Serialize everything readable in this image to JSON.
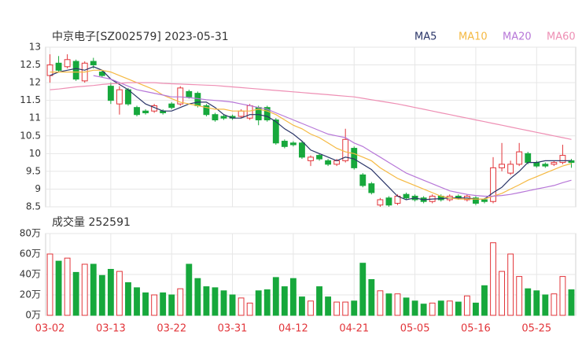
{
  "chart_data": [
    {
      "type": "candlestick",
      "title": "中京电子[SZ002579] 2023-05-31",
      "open": [
        12.2,
        12.55,
        12.45,
        12.6,
        12.05,
        12.6,
        12.3,
        11.9,
        11.4,
        11.8,
        11.3,
        11.2,
        11.2,
        11.2,
        11.4,
        11.4,
        11.75,
        11.7,
        11.35,
        11.1,
        11.05,
        11.05,
        11.05,
        11.0,
        11.3,
        11.3,
        10.95,
        10.35,
        10.3,
        10.3,
        9.8,
        9.95,
        9.8,
        9.7,
        9.8,
        10.15,
        9.4,
        9.15,
        8.55,
        8.75,
        8.6,
        8.85,
        8.8,
        8.75,
        8.65,
        8.8,
        8.7,
        8.8,
        8.7,
        8.75,
        8.7,
        8.65,
        9.6,
        9.45,
        9.7,
        10.0,
        9.75,
        9.7,
        9.7,
        9.75,
        9.8
      ],
      "high": [
        12.8,
        12.75,
        12.8,
        12.65,
        12.6,
        12.7,
        12.35,
        12.0,
        11.9,
        11.85,
        11.35,
        11.25,
        11.4,
        11.25,
        11.45,
        11.9,
        11.8,
        11.75,
        11.4,
        11.15,
        11.1,
        11.1,
        11.25,
        11.4,
        11.35,
        11.35,
        11.0,
        10.4,
        10.35,
        10.35,
        9.95,
        10.0,
        9.85,
        9.85,
        10.7,
        10.2,
        9.45,
        9.2,
        8.75,
        8.8,
        8.85,
        8.9,
        8.85,
        8.8,
        8.85,
        8.85,
        8.85,
        8.85,
        8.85,
        8.8,
        8.75,
        9.9,
        10.3,
        9.8,
        10.3,
        10.05,
        9.8,
        9.75,
        9.8,
        10.25,
        9.85
      ],
      "low": [
        12.0,
        12.3,
        12.4,
        12.05,
        12.0,
        12.4,
        12.15,
        11.4,
        11.1,
        11.35,
        11.05,
        11.1,
        11.15,
        11.1,
        11.25,
        11.35,
        11.55,
        11.3,
        11.05,
        10.9,
        10.95,
        10.95,
        11.0,
        10.95,
        10.8,
        10.9,
        10.25,
        10.15,
        10.2,
        9.85,
        9.65,
        9.8,
        9.65,
        9.65,
        9.75,
        9.55,
        9.05,
        8.85,
        8.5,
        8.5,
        8.55,
        8.7,
        8.65,
        8.6,
        8.6,
        8.65,
        8.65,
        8.7,
        8.65,
        8.55,
        8.6,
        8.6,
        9.5,
        9.4,
        9.65,
        9.7,
        9.6,
        9.6,
        9.65,
        9.7,
        9.6
      ],
      "close": [
        12.5,
        12.35,
        12.65,
        12.1,
        12.55,
        12.5,
        12.2,
        11.5,
        11.8,
        11.4,
        11.1,
        11.15,
        11.35,
        11.15,
        11.3,
        11.85,
        11.6,
        11.35,
        11.1,
        10.95,
        11.0,
        11.0,
        11.2,
        11.35,
        10.95,
        10.95,
        10.3,
        10.2,
        10.25,
        9.9,
        9.9,
        9.85,
        9.7,
        9.8,
        10.4,
        9.6,
        9.1,
        8.9,
        8.7,
        8.55,
        8.8,
        8.75,
        8.7,
        8.65,
        8.8,
        8.7,
        8.8,
        8.75,
        8.8,
        8.6,
        8.65,
        9.6,
        9.7,
        9.7,
        10.05,
        9.75,
        9.65,
        9.65,
        9.75,
        9.95,
        9.75
      ],
      "up_color": "#e2353a",
      "down_color": "#17a83c",
      "ylim": [
        8.5,
        13
      ],
      "yticks": [
        8.5,
        9,
        9.5,
        10,
        10.5,
        11,
        11.5,
        12,
        12.5,
        13
      ],
      "grid": true,
      "series": [
        {
          "name": "MA5",
          "color": "#2a3568",
          "values": [
            12.2,
            12.3,
            12.35,
            12.4,
            12.35,
            12.45,
            12.35,
            12.1,
            11.95,
            11.8,
            11.6,
            11.4,
            11.3,
            11.2,
            11.2,
            11.3,
            11.4,
            11.45,
            11.45,
            11.3,
            11.1,
            11.0,
            11.0,
            11.1,
            11.1,
            11.05,
            10.9,
            10.7,
            10.55,
            10.35,
            10.1,
            10.0,
            9.9,
            9.8,
            9.9,
            9.85,
            9.7,
            9.55,
            9.3,
            9.05,
            8.8,
            8.7,
            8.75,
            8.7,
            8.72,
            8.73,
            8.75,
            8.75,
            8.75,
            8.72,
            8.72,
            8.9,
            9.05,
            9.3,
            9.5,
            9.75,
            9.75,
            9.8,
            9.8,
            9.8,
            9.8
          ]
        },
        {
          "name": "MA10",
          "color": "#f5b942",
          "values": [
            12.3,
            12.3,
            12.3,
            12.3,
            12.3,
            12.35,
            12.35,
            12.3,
            12.2,
            12.1,
            12.0,
            11.9,
            11.8,
            11.65,
            11.55,
            11.45,
            11.4,
            11.35,
            11.3,
            11.25,
            11.25,
            11.2,
            11.2,
            11.2,
            11.25,
            11.2,
            11.1,
            10.95,
            10.8,
            10.7,
            10.55,
            10.45,
            10.3,
            10.15,
            10.05,
            10.0,
            9.9,
            9.8,
            9.6,
            9.45,
            9.3,
            9.2,
            9.1,
            9.0,
            8.9,
            8.8,
            8.75,
            8.72,
            8.72,
            8.72,
            8.72,
            8.8,
            8.88,
            9.0,
            9.12,
            9.25,
            9.35,
            9.45,
            9.55,
            9.65,
            9.72
          ]
        },
        {
          "name": "MA20",
          "color": "#b777d8",
          "values": [
            null,
            null,
            null,
            null,
            null,
            12.2,
            12.15,
            12.1,
            12.0,
            11.9,
            11.8,
            11.75,
            11.7,
            11.65,
            11.6,
            11.6,
            11.58,
            11.55,
            11.52,
            11.5,
            11.48,
            11.45,
            11.4,
            11.35,
            11.3,
            11.25,
            11.15,
            11.05,
            10.95,
            10.85,
            10.75,
            10.65,
            10.55,
            10.5,
            10.45,
            10.3,
            10.2,
            10.05,
            9.9,
            9.75,
            9.6,
            9.45,
            9.35,
            9.25,
            9.15,
            9.05,
            8.95,
            8.9,
            8.85,
            8.82,
            8.8,
            8.8,
            8.82,
            8.85,
            8.9,
            8.95,
            9.0,
            9.05,
            9.1,
            9.18,
            9.25
          ]
        },
        {
          "name": "MA60",
          "color": "#ee8fb4",
          "values": [
            11.8,
            11.82,
            11.85,
            11.88,
            11.9,
            11.92,
            11.95,
            11.97,
            11.98,
            12.0,
            12.0,
            12.0,
            12.0,
            11.98,
            11.97,
            11.96,
            11.95,
            11.94,
            11.93,
            11.92,
            11.9,
            11.88,
            11.86,
            11.84,
            11.82,
            11.8,
            11.78,
            11.76,
            11.74,
            11.72,
            11.7,
            11.68,
            11.66,
            11.64,
            11.62,
            11.6,
            11.56,
            11.52,
            11.48,
            11.44,
            11.4,
            11.35,
            11.3,
            11.25,
            11.2,
            11.15,
            11.1,
            11.05,
            11.0,
            10.95,
            10.9,
            10.85,
            10.8,
            10.75,
            10.7,
            10.65,
            10.6,
            10.55,
            10.5,
            10.45,
            10.4
          ]
        }
      ]
    },
    {
      "type": "bar",
      "title": "成交量 252591",
      "categories": [
        "03-02",
        null,
        null,
        null,
        null,
        null,
        null,
        "03-13",
        null,
        null,
        null,
        null,
        null,
        null,
        "03-22",
        null,
        null,
        null,
        null,
        null,
        null,
        "03-31",
        null,
        null,
        null,
        null,
        null,
        null,
        "04-12",
        null,
        null,
        null,
        null,
        null,
        null,
        "04-21",
        null,
        null,
        null,
        null,
        null,
        null,
        "05-05",
        null,
        null,
        null,
        null,
        null,
        null,
        "05-16",
        null,
        null,
        null,
        null,
        null,
        null,
        "05-25",
        null,
        null,
        null,
        null
      ],
      "values": [
        60,
        53,
        56,
        42,
        50,
        50,
        39,
        45,
        43,
        32,
        27,
        22,
        20,
        22,
        20,
        26,
        50,
        36,
        28,
        27,
        24,
        20,
        17,
        12,
        24,
        25,
        37,
        28,
        36,
        18,
        14,
        28,
        18,
        13,
        13,
        14,
        51,
        35,
        24,
        21,
        21,
        17,
        14,
        11,
        12,
        14,
        14,
        13,
        19,
        12,
        29,
        71,
        43,
        60,
        38,
        26,
        24,
        20,
        21,
        38,
        25
      ],
      "ylim": [
        0,
        80
      ],
      "yticks": [
        {
          "value": 0,
          "label": "0万"
        },
        {
          "value": 20,
          "label": "20万"
        },
        {
          "value": 40,
          "label": "40万"
        },
        {
          "value": 60,
          "label": "60万"
        },
        {
          "value": 80,
          "label": "80万"
        }
      ],
      "grid": true
    }
  ]
}
